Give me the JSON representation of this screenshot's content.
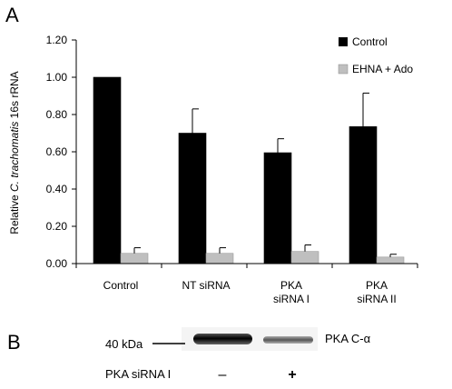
{
  "panels": {
    "a": "A",
    "b": "B"
  },
  "chart_data": {
    "type": "bar",
    "ylabel_prefix": "Relative ",
    "ylabel_italic": "C. trachomatis",
    "ylabel_suffix": " 16s rRNA",
    "ylim": [
      0,
      1.2
    ],
    "yticks": [
      "0.00",
      "0.20",
      "0.40",
      "0.60",
      "0.80",
      "1.00",
      "1.20"
    ],
    "categories": [
      [
        "Control"
      ],
      [
        "NT siRNA"
      ],
      [
        "PKA",
        "siRNA I"
      ],
      [
        "PKA",
        "siRNA II"
      ]
    ],
    "series": [
      {
        "name": "Control",
        "color": "#000000",
        "values": [
          1.0,
          0.7,
          0.595,
          0.735
        ],
        "errors": [
          0.0,
          0.13,
          0.075,
          0.18
        ]
      },
      {
        "name": "EHNA + Ado",
        "color": "#bfbfbf",
        "values": [
          0.055,
          0.055,
          0.065,
          0.035
        ],
        "errors": [
          0.03,
          0.03,
          0.035,
          0.015
        ]
      }
    ],
    "legend_position": "top-right",
    "grid": false
  },
  "blot": {
    "marker_label": "40 kDa",
    "band_label": "PKA C-α",
    "treatment_label": "PKA siRNA I",
    "lanes": [
      "–",
      "+"
    ]
  }
}
